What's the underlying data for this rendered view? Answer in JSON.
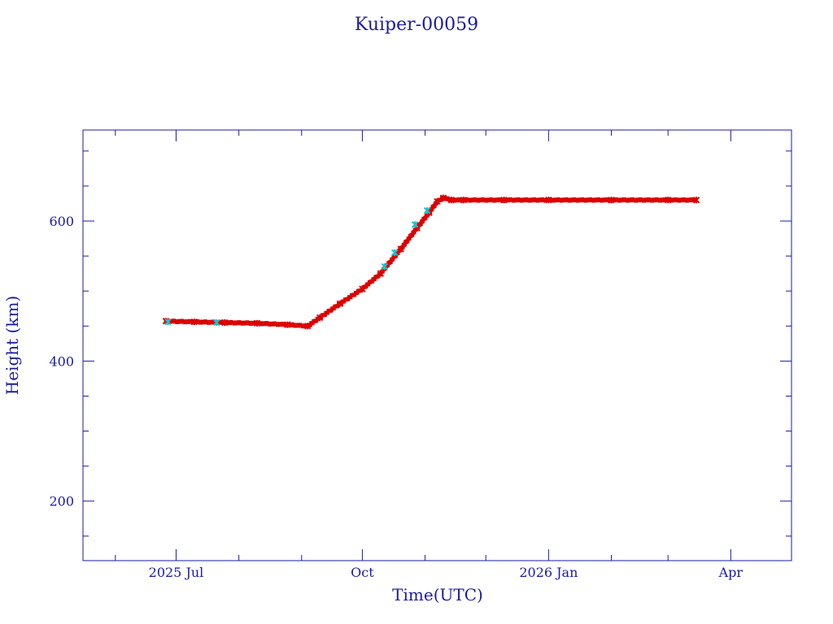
{
  "chart_data": {
    "type": "scatter",
    "title": "Kuiper-00059",
    "xlabel": "Time(UTC)",
    "ylabel": "Height (km)",
    "x_axis": "date",
    "xlim": [
      "2025-05-16",
      "2026-05-01"
    ],
    "ylim": [
      115,
      730
    ],
    "x_ticks": [
      {
        "date": "2025-07-01",
        "label": "2025 Jul"
      },
      {
        "date": "2025-10-01",
        "label": "Oct"
      },
      {
        "date": "2026-01-01",
        "label": "2026 Jan"
      },
      {
        "date": "2026-04-01",
        "label": "Apr"
      }
    ],
    "x_minor_ticks": [
      "2025-06-01",
      "2025-08-01",
      "2025-09-01",
      "2025-11-01",
      "2025-12-01",
      "2026-02-01",
      "2026-03-01"
    ],
    "y_ticks": [
      200,
      400,
      600
    ],
    "y_minor_ticks": [
      150,
      250,
      300,
      350,
      450,
      500,
      550,
      650,
      700
    ],
    "grid": false,
    "colors": {
      "axis": "#1a1aa6",
      "primary": "#dd0000",
      "secondary": "#20c0c8"
    },
    "series": [
      {
        "marker": "primary",
        "color": "#dd0000",
        "points": [
          {
            "x": "2025-06-26",
            "y": 457
          },
          {
            "x": "2025-07-10",
            "y": 456
          },
          {
            "x": "2025-07-25",
            "y": 455
          },
          {
            "x": "2025-08-10",
            "y": 454
          },
          {
            "x": "2025-08-25",
            "y": 452
          },
          {
            "x": "2025-09-04",
            "y": 450
          },
          {
            "x": "2025-09-10",
            "y": 462
          },
          {
            "x": "2025-09-20",
            "y": 482
          },
          {
            "x": "2025-10-01",
            "y": 503
          },
          {
            "x": "2025-10-10",
            "y": 525
          },
          {
            "x": "2025-10-20",
            "y": 560
          },
          {
            "x": "2025-10-28",
            "y": 590
          },
          {
            "x": "2025-11-03",
            "y": 612
          },
          {
            "x": "2025-11-07",
            "y": 628
          },
          {
            "x": "2025-11-10",
            "y": 633
          },
          {
            "x": "2025-11-14",
            "y": 630
          },
          {
            "x": "2025-11-20",
            "y": 630
          },
          {
            "x": "2025-12-10",
            "y": 630
          },
          {
            "x": "2026-01-01",
            "y": 630
          },
          {
            "x": "2026-02-01",
            "y": 630
          },
          {
            "x": "2026-03-01",
            "y": 630
          },
          {
            "x": "2026-03-15",
            "y": 630
          }
        ]
      },
      {
        "marker": "secondary",
        "color": "#20c0c8",
        "points": [
          {
            "x": "2025-06-27",
            "y": 456
          },
          {
            "x": "2025-07-21",
            "y": 455
          },
          {
            "x": "2025-10-12",
            "y": 535
          },
          {
            "x": "2025-10-17",
            "y": 555
          },
          {
            "x": "2025-10-27",
            "y": 595
          },
          {
            "x": "2025-11-02",
            "y": 615
          }
        ]
      }
    ]
  }
}
